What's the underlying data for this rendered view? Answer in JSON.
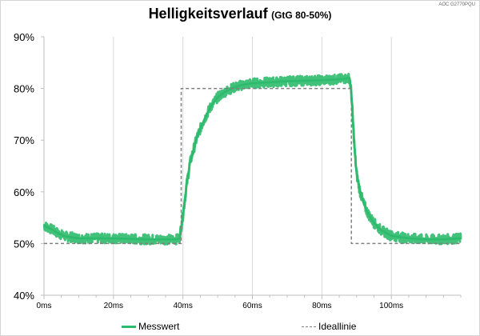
{
  "chart_data": {
    "type": "line",
    "title": "Helligkeitsverlauf",
    "subtitle": "(GtG 80-50%)",
    "watermark": "AOC G2770PQU",
    "xlabel": "",
    "ylabel": "",
    "x_unit": "ms",
    "xlim": [
      0,
      120
    ],
    "ylim": [
      40,
      90
    ],
    "x_ticks": [
      0,
      20,
      40,
      60,
      80,
      100
    ],
    "x_tick_labels": [
      "0ms",
      "20ms",
      "40ms",
      "60ms",
      "80ms",
      "100ms"
    ],
    "y_ticks": [
      40,
      50,
      60,
      70,
      80,
      90
    ],
    "y_tick_labels": [
      "40%",
      "50%",
      "60%",
      "70%",
      "80%",
      "90%"
    ],
    "grid": "vertical",
    "legend_position": "bottom",
    "series": [
      {
        "name": "Messwert",
        "color": "#2cba6c",
        "style": "solid",
        "x": [
          0,
          2,
          4,
          6,
          10,
          20,
          30,
          38,
          39,
          40,
          41,
          42,
          44,
          46,
          48,
          50,
          52,
          54,
          56,
          58,
          60,
          65,
          70,
          75,
          80,
          85,
          88,
          88.5,
          89,
          89.5,
          90,
          91,
          92,
          93,
          94,
          95,
          97,
          100,
          105,
          110,
          115,
          120
        ],
        "values": [
          53.5,
          52.8,
          52.0,
          51.4,
          51.0,
          51.0,
          50.8,
          50.8,
          51.0,
          55.5,
          61.0,
          65.5,
          70.5,
          73.8,
          76.5,
          78.3,
          79.3,
          80.0,
          80.5,
          80.8,
          81.0,
          81.2,
          81.4,
          81.5,
          81.6,
          81.8,
          82.0,
          79.0,
          73.0,
          67.5,
          63.5,
          60.0,
          57.8,
          56.2,
          55.0,
          54.0,
          52.6,
          51.5,
          51.0,
          50.8,
          50.8,
          51.0
        ],
        "noise_band": 1.2
      },
      {
        "name": "Ideallinie",
        "color": "#808080",
        "style": "dashed",
        "x": [
          0,
          39.5,
          39.5,
          88.5,
          88.5,
          120
        ],
        "values": [
          50,
          50,
          80,
          80,
          50,
          50
        ]
      }
    ]
  }
}
